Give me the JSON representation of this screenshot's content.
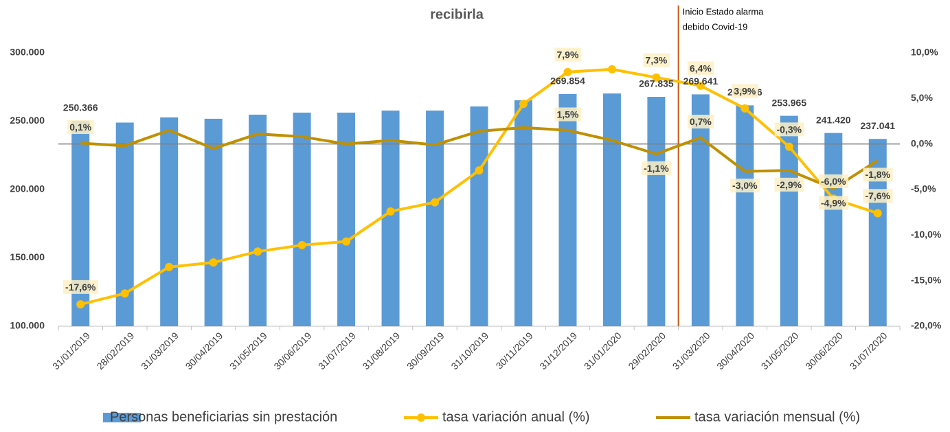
{
  "chart_data": {
    "type": "bar-line",
    "title": "recibirla",
    "categories": [
      "31/01/2019",
      "28/02/2019",
      "31/03/2019",
      "30/04/2019",
      "31/05/2019",
      "30/06/2019",
      "31/07/2019",
      "31/08/2019",
      "30/09/2019",
      "31/10/2019",
      "30/11/2019",
      "31/12/2019",
      "31/01/2020",
      "29/02/2020",
      "31/03/2020",
      "30/04/2020",
      "31/05/2020",
      "30/06/2020",
      "31/07/2020"
    ],
    "series": [
      {
        "name": "Personas beneficiarias sin prestación",
        "type": "bar",
        "color": "#5b9bd5",
        "values": [
          250366,
          249000,
          252800,
          251800,
          254800,
          256300,
          256300,
          257800,
          257800,
          260800,
          265300,
          269854,
          270300,
          267835,
          269641,
          261616,
          253965,
          241420,
          237041
        ],
        "value_labels": [
          "250.366",
          null,
          null,
          null,
          null,
          null,
          null,
          null,
          null,
          null,
          null,
          "269.854",
          null,
          "267.835",
          "269.641",
          "261.616",
          "253.965",
          "241.420",
          "237.041"
        ]
      },
      {
        "name": "tasa variación anual (%)",
        "type": "line",
        "axis": "y2",
        "color": "#ffc000",
        "markers": true,
        "values": [
          -17.6,
          -16.4,
          -13.5,
          -13.0,
          -11.8,
          -11.1,
          -10.7,
          -7.4,
          -6.4,
          -2.9,
          4.4,
          7.9,
          8.2,
          7.3,
          6.4,
          3.9,
          -0.3,
          -6.0,
          -7.6
        ],
        "value_labels": [
          "-17,6%",
          null,
          null,
          null,
          null,
          null,
          null,
          null,
          null,
          null,
          null,
          "7,9%",
          null,
          "7,3%",
          "6,4%",
          "3,9%",
          "-0,3%",
          "-6,0%",
          "-7,6%"
        ]
      },
      {
        "name": "tasa variación mensual (%)",
        "type": "line",
        "axis": "y2",
        "color": "#bf9000",
        "markers": false,
        "values": [
          0.1,
          -0.2,
          1.5,
          -0.5,
          1.1,
          0.8,
          0.0,
          0.4,
          -0.1,
          1.4,
          1.8,
          1.5,
          0.4,
          -1.1,
          0.7,
          -3.0,
          -2.9,
          -4.9,
          -1.8
        ],
        "value_labels": [
          "0,1%",
          null,
          null,
          null,
          null,
          null,
          null,
          null,
          null,
          null,
          null,
          "1,5%",
          null,
          "-1,1%",
          "0,7%",
          "-3,0%",
          "-2,9%",
          "-4,9%",
          "-1,8%"
        ]
      }
    ],
    "ylim": [
      100000,
      300000
    ],
    "yticks": [
      {
        "value": 100000,
        "label": "100.000"
      },
      {
        "value": 150000,
        "label": "150.000"
      },
      {
        "value": 200000,
        "label": "200.000"
      },
      {
        "value": 250000,
        "label": "250.000"
      },
      {
        "value": 300000,
        "label": "300.000"
      }
    ],
    "y2lim": [
      -20,
      10
    ],
    "y2ticks": [
      {
        "value": -20,
        "label": "-20,0%"
      },
      {
        "value": -15,
        "label": "-15,0%"
      },
      {
        "value": -10,
        "label": "-10,0%"
      },
      {
        "value": -5,
        "label": "-5,0%"
      },
      {
        "value": 0,
        "label": "0,0%"
      },
      {
        "value": 5,
        "label": "5,0%"
      },
      {
        "value": 10,
        "label": "10,0%"
      }
    ],
    "annotation": {
      "text": [
        "Inicio Estado alarma",
        "debido Covid-19"
      ],
      "after_category": 13
    },
    "legend": "bottom"
  }
}
